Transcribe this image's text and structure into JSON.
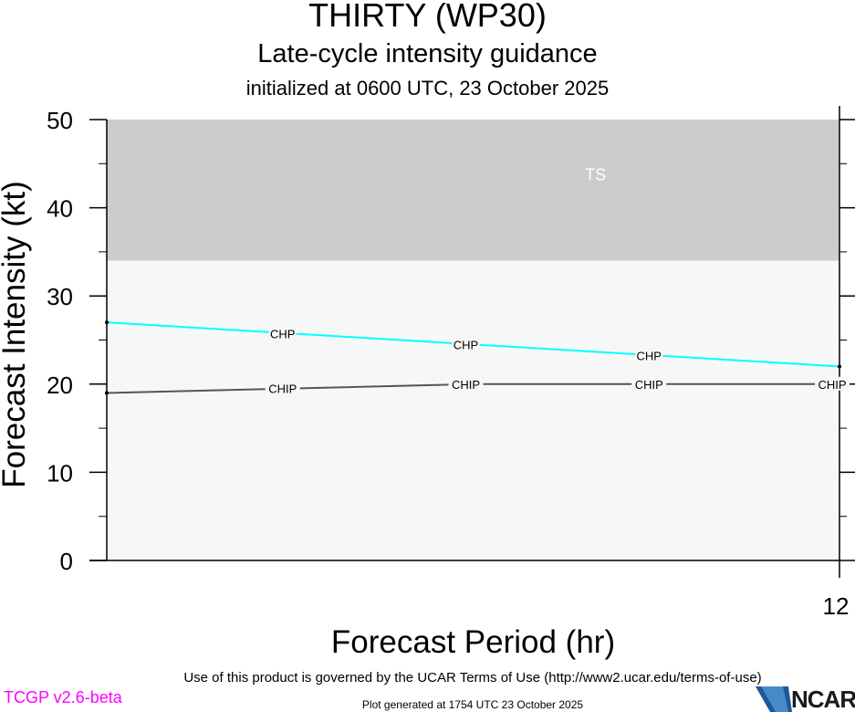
{
  "header": {
    "title": "THIRTY (WP30)",
    "subtitle": "Late-cycle intensity guidance",
    "initialized": "initialized at 0600 UTC, 23 October 2025"
  },
  "footer": {
    "terms": "Use of this product is governed by the UCAR Terms of Use (http://www2.ucar.edu/terms-of-use)",
    "generated": "Plot generated at 1754 UTC   23 October 2025",
    "version": "TCGP v2.6-beta",
    "logo_text": "NCAR"
  },
  "chart_data": {
    "type": "line",
    "title": "THIRTY (WP30)",
    "xlabel": "Forecast Period (hr)",
    "ylabel": "Forecast Intensity (kt)",
    "xlim": [
      0,
      12
    ],
    "ylim": [
      0,
      50
    ],
    "x_ticks": [
      12
    ],
    "y_ticks": [
      0,
      10,
      20,
      30,
      40,
      50
    ],
    "grid": false,
    "bands": [
      {
        "label": "TS",
        "from": 34,
        "to": 50,
        "color": "#cccccc"
      }
    ],
    "plot_background": "#f7f7f7",
    "series": [
      {
        "name": "CHP",
        "color": "#00ffff",
        "x": [
          0,
          12
        ],
        "y": [
          27,
          22
        ],
        "label_x": [
          3,
          6,
          9
        ]
      },
      {
        "name": "CHIP",
        "color": "#555555",
        "x": [
          0,
          6,
          12
        ],
        "y": [
          19,
          20,
          20
        ],
        "label_x": [
          3,
          6,
          9,
          12
        ]
      }
    ]
  }
}
